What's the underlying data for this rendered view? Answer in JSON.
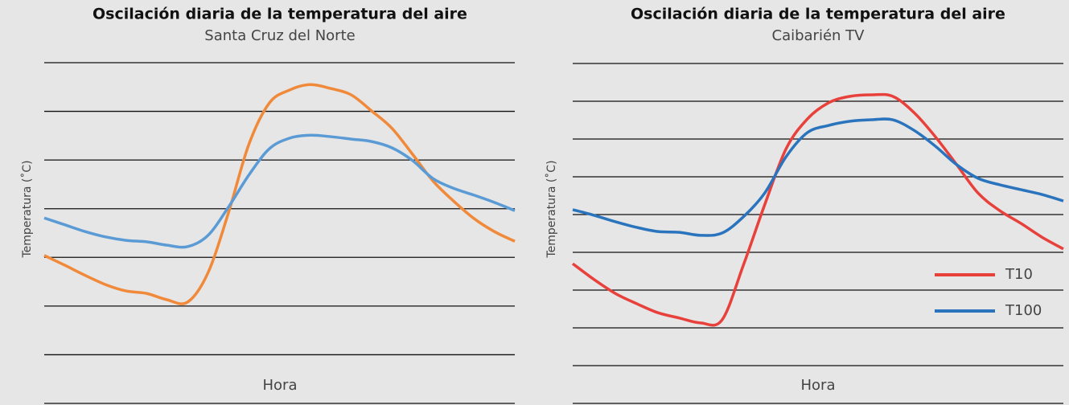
{
  "chart_data": [
    {
      "type": "line",
      "title": "Oscilación diaria de la temperatura del aire",
      "subtitle": "Santa Cruz del Norte",
      "x_label": "Hora",
      "y_label": "Temperatura (˚C)",
      "categories": [
        null,
        null,
        null,
        null,
        null,
        null,
        null,
        null,
        null,
        null,
        null,
        null,
        null,
        null,
        null,
        null,
        null,
        null,
        null,
        null,
        null,
        null,
        null,
        null
      ],
      "series": [
        {
          "color": "#f08a3a",
          "values": [
            3.04,
            2.84,
            2.63,
            2.44,
            2.31,
            2.26,
            2.13,
            2.08,
            2.68,
            3.91,
            5.32,
            6.17,
            6.44,
            6.55,
            6.47,
            6.34,
            6.01,
            5.65,
            5.12,
            4.57,
            4.16,
            3.8,
            3.53,
            3.33
          ]
        },
        {
          "color": "#5b9bd5",
          "values": [
            3.81,
            3.67,
            3.53,
            3.42,
            3.35,
            3.32,
            3.25,
            3.22,
            3.45,
            4.03,
            4.69,
            5.23,
            5.45,
            5.51,
            5.48,
            5.43,
            5.38,
            5.25,
            4.99,
            4.62,
            4.42,
            4.28,
            4.13,
            3.96
          ]
        }
      ],
      "ylim": [
        0,
        7
      ],
      "yticks": [
        0,
        1,
        2,
        3,
        4,
        5,
        6,
        7
      ],
      "grid": true
    },
    {
      "type": "line",
      "title": "Oscilación diaria de la temperatura del aire",
      "subtitle": "Caibarién TV",
      "x_label": "Hora",
      "y_label": "Temperatura (˚C)",
      "categories": [
        null,
        null,
        null,
        null,
        null,
        null,
        null,
        null,
        null,
        null,
        null,
        null,
        null,
        null,
        null,
        null,
        null,
        null,
        null,
        null,
        null,
        null,
        null,
        null
      ],
      "series": [
        {
          "name": "T10",
          "color": "#e8413c",
          "values": [
            3.7,
            3.28,
            2.91,
            2.64,
            2.4,
            2.26,
            2.13,
            2.21,
            3.66,
            5.26,
            6.74,
            7.53,
            7.96,
            8.13,
            8.17,
            8.13,
            7.7,
            7.06,
            6.32,
            5.57,
            5.11,
            4.77,
            4.4,
            4.09
          ]
        },
        {
          "name": "T100",
          "color": "#2a74bd",
          "values": [
            5.13,
            4.98,
            4.81,
            4.66,
            4.55,
            4.53,
            4.45,
            4.51,
            4.94,
            5.57,
            6.53,
            7.17,
            7.36,
            7.47,
            7.51,
            7.51,
            7.23,
            6.81,
            6.32,
            5.96,
            5.79,
            5.66,
            5.53,
            5.36
          ]
        }
      ],
      "ylim": [
        0,
        9
      ],
      "yticks": [
        0,
        1,
        2,
        3,
        4,
        5,
        6,
        7,
        8,
        9
      ],
      "grid": true,
      "legend": "lower right"
    }
  ]
}
